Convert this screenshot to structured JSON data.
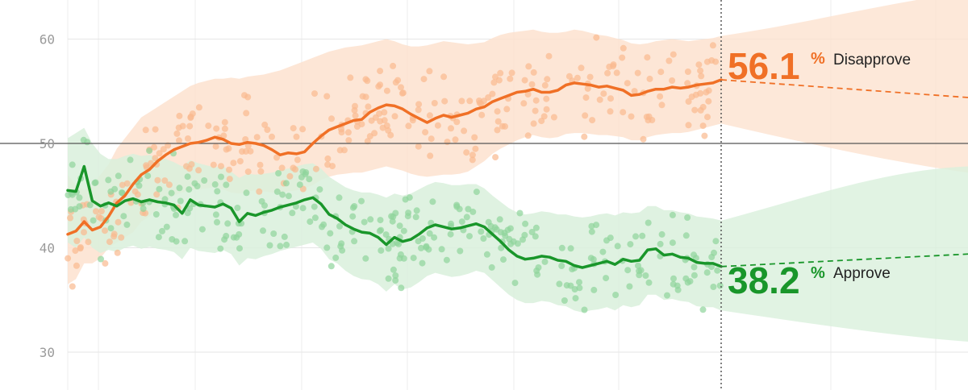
{
  "chart_data": {
    "type": "line",
    "title": "",
    "xlabel": "",
    "ylabel": "",
    "ylim": [
      28,
      64
    ],
    "yticks": [
      30,
      40,
      50,
      60
    ],
    "grid": true,
    "reference_line": 50,
    "series": [
      {
        "name": "Disapprove",
        "color": "#f07026",
        "band_color": "#fde2cf",
        "dot_color": "#f9b98e",
        "current_value": "56.1",
        "pct_symbol": "%",
        "values": [
          41.3,
          41.6,
          42.5,
          41.7,
          42.0,
          43.0,
          44.3,
          45.0,
          46.1,
          47.0,
          47.5,
          48.3,
          48.9,
          49.4,
          49.7,
          50.0,
          50.1,
          50.3,
          50.6,
          50.4,
          50.0,
          49.9,
          50.1,
          50.0,
          49.8,
          49.4,
          48.9,
          49.1,
          49.0,
          49.2,
          50.0,
          50.7,
          51.3,
          51.6,
          51.9,
          52.2,
          52.3,
          53.0,
          53.4,
          53.7,
          53.6,
          53.3,
          52.8,
          52.4,
          52.0,
          52.4,
          52.7,
          52.5,
          52.7,
          52.9,
          53.3,
          53.5,
          54.0,
          54.3,
          54.6,
          54.9,
          55.0,
          55.2,
          54.9,
          54.9,
          55.1,
          55.6,
          55.8,
          55.7,
          55.6,
          55.4,
          55.5,
          55.3,
          55.1,
          54.6,
          54.7,
          55.0,
          55.2,
          55.2,
          55.4,
          55.3,
          55.4,
          55.6,
          55.7,
          55.8,
          56.1
        ],
        "projection_end": 54.4,
        "upper_band": [
          47,
          46,
          45.5,
          46,
          47,
          48,
          49.5,
          50.5,
          51.5,
          52.5,
          53,
          53.5,
          54,
          54.5,
          55,
          55.5,
          55.8,
          56,
          56.2,
          56.2,
          56.3,
          56.2,
          56.4,
          56.5,
          56.6,
          56.8,
          57,
          57.3,
          57.6,
          57.9,
          58.2,
          58.5,
          58.8,
          59.0,
          59.2,
          59.3,
          59.4,
          59.6,
          59.8,
          60.0,
          59.8,
          59.5,
          59.3,
          59.3,
          59.4,
          59.6,
          59.8,
          59.7,
          59.6,
          59.5,
          59.6,
          59.7,
          60.1,
          60.4,
          60.6,
          60.7,
          60.8,
          60.9,
          60.7,
          60.6,
          60.6,
          60.7,
          60.9,
          60.8,
          60.6,
          60.4,
          60.3,
          60.1,
          59.9,
          59.6,
          59.5,
          59.6,
          59.8,
          59.9,
          60.0,
          59.9,
          59.8,
          59.9,
          60.0,
          60.1,
          60.3
        ],
        "lower_band": [
          36.5,
          37,
          38.5,
          38.5,
          39,
          40,
          40.5,
          41,
          41.5,
          42.5,
          43,
          43.8,
          44.5,
          45,
          45.3,
          45.5,
          45.6,
          45.7,
          45.8,
          45.6,
          45.3,
          45.2,
          45.4,
          45.5,
          45.4,
          45.3,
          45.3,
          45.4,
          45.5,
          45.7,
          46.0,
          46.5,
          46.8,
          47.0,
          47.1,
          47.2,
          47.2,
          47.4,
          47.6,
          47.8,
          47.6,
          47.4,
          47.1,
          46.9,
          46.8,
          46.9,
          47.0,
          47.0,
          47.1,
          47.3,
          47.8,
          48.3,
          49.0,
          49.5,
          49.9,
          50.3,
          50.6,
          50.8,
          50.6,
          50.5,
          50.6,
          50.9,
          51.0,
          51.0,
          50.9,
          50.8,
          50.8,
          50.7,
          50.6,
          50.3,
          50.3,
          50.6,
          50.8,
          50.9,
          51.0,
          51.0,
          51.1,
          51.3,
          51.5,
          51.7,
          51.9
        ]
      },
      {
        "name": "Approve",
        "color": "#19962a",
        "band_color": "#d9f0dc",
        "dot_color": "#8fd49b",
        "current_value": "38.2",
        "pct_symbol": "%",
        "values": [
          45.5,
          45.4,
          47.8,
          44.5,
          44.0,
          44.3,
          44.0,
          44.5,
          44.7,
          44.4,
          44.6,
          44.4,
          44.3,
          44.1,
          43.3,
          44.6,
          44.1,
          44.0,
          43.9,
          44.2,
          43.8,
          42.5,
          43.3,
          43.1,
          43.4,
          43.6,
          43.9,
          44.1,
          44.3,
          44.6,
          44.8,
          44.2,
          43.2,
          42.8,
          42.2,
          41.8,
          41.5,
          41.4,
          41.0,
          40.3,
          41.0,
          40.6,
          40.8,
          41.3,
          41.9,
          42.2,
          42.0,
          41.8,
          41.9,
          42.1,
          42.3,
          42.0,
          41.3,
          40.6,
          39.8,
          39.2,
          38.9,
          39.0,
          39.2,
          39.1,
          38.8,
          38.7,
          38.3,
          38.1,
          38.3,
          38.5,
          38.7,
          38.4,
          38.9,
          38.7,
          38.8,
          39.8,
          39.9,
          39.3,
          39.4,
          39.1,
          39.0,
          38.6,
          38.5,
          38.5,
          38.2
        ],
        "projection_end": 39.4,
        "upper_band": [
          50.5,
          51,
          51.5,
          50,
          49,
          48.5,
          48.5,
          48.8,
          49.0,
          48.8,
          48.9,
          48.6,
          48.5,
          48.2,
          47.8,
          48.4,
          48.1,
          47.9,
          47.7,
          47.8,
          47.3,
          46.7,
          47.1,
          47.0,
          47.1,
          47.2,
          47.4,
          47.6,
          47.8,
          48.0,
          48.1,
          47.6,
          46.8,
          46.3,
          45.8,
          45.5,
          45.3,
          45.3,
          45.1,
          44.8,
          45.2,
          45.0,
          45.2,
          45.6,
          46.0,
          46.3,
          46.2,
          46.0,
          46.0,
          46.1,
          46.1,
          45.7,
          45.0,
          44.4,
          43.8,
          43.4,
          43.2,
          43.3,
          43.5,
          43.4,
          43.2,
          43.2,
          43.0,
          42.9,
          43.0,
          43.2,
          43.3,
          43.1,
          43.4,
          43.3,
          43.4,
          44.0,
          44.0,
          43.6,
          43.6,
          43.4,
          43.3,
          43.0,
          42.9,
          42.8,
          42.6
        ],
        "lower_band": [
          40.5,
          40,
          41,
          40,
          39.5,
          39.8,
          39.6,
          40.0,
          40.2,
          39.9,
          40.1,
          39.9,
          39.8,
          39.6,
          38.9,
          40.0,
          39.7,
          39.6,
          39.5,
          39.8,
          39.4,
          38.3,
          39.0,
          38.9,
          39.2,
          39.4,
          39.7,
          39.9,
          40.1,
          40.3,
          40.5,
          39.9,
          38.9,
          38.5,
          37.8,
          37.3,
          37.0,
          36.9,
          36.5,
          35.8,
          36.5,
          36.0,
          36.2,
          36.7,
          37.3,
          37.6,
          37.4,
          37.2,
          37.3,
          37.5,
          37.8,
          37.6,
          36.9,
          36.2,
          35.5,
          35.0,
          34.7,
          34.7,
          34.9,
          34.8,
          34.5,
          34.4,
          34.0,
          33.8,
          34.0,
          34.1,
          34.3,
          34.0,
          34.5,
          34.3,
          34.5,
          35.5,
          35.5,
          35.0,
          35.1,
          34.9,
          34.8,
          34.4,
          34.3,
          34.3,
          34.0
        ]
      }
    ]
  }
}
